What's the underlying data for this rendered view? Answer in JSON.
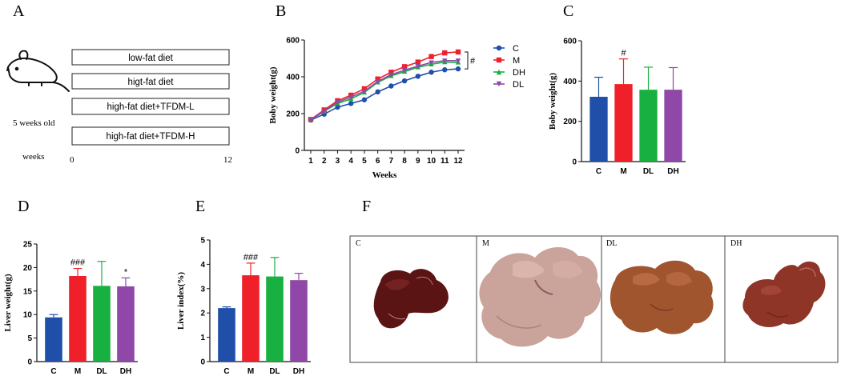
{
  "panel_letters": {
    "a": "A",
    "b": "B",
    "c": "C",
    "d": "D",
    "e": "E",
    "f": "F"
  },
  "panel_a": {
    "diets": [
      "low-fat diet",
      "higt-fat diet",
      "high-fat diet+TFDM-L",
      "high-fat diet+TFDM-H"
    ],
    "age_label": "5 weeks old",
    "weeks_label": "weeks",
    "start_week": "0",
    "end_week": "12"
  },
  "panel_f": {
    "labels": [
      "C",
      "M",
      "DL",
      "DH"
    ]
  },
  "colors": {
    "C": "#1f4fa8",
    "M": "#f0202a",
    "DH": "#18b040",
    "DL": "#8f48a8"
  },
  "chart_data": [
    {
      "id": "B",
      "type": "line",
      "xlabel": "Weeks",
      "ylabel": "Boby weight(g)",
      "x": [
        1,
        2,
        3,
        4,
        5,
        6,
        7,
        8,
        9,
        10,
        11,
        12
      ],
      "xticks": [
        "1",
        "2",
        "3",
        "4",
        "5",
        "6",
        "7",
        "8",
        "9",
        "10",
        "11",
        "12"
      ],
      "ylim": [
        0,
        600
      ],
      "yticks": [
        "0",
        "200",
        "400",
        "600"
      ],
      "series": [
        {
          "name": "C",
          "marker": "circle",
          "values": [
            165,
            197,
            235,
            255,
            275,
            318,
            350,
            378,
            403,
            425,
            438,
            443
          ]
        },
        {
          "name": "M",
          "marker": "square",
          "values": [
            168,
            220,
            270,
            300,
            335,
            388,
            425,
            455,
            480,
            510,
            530,
            535
          ]
        },
        {
          "name": "DH",
          "marker": "triangle-up",
          "values": [
            167,
            212,
            255,
            280,
            315,
            370,
            405,
            428,
            452,
            468,
            480,
            478
          ]
        },
        {
          "name": "DL",
          "marker": "triangle-down",
          "values": [
            166,
            215,
            262,
            290,
            322,
            375,
            412,
            436,
            458,
            478,
            488,
            488
          ]
        }
      ],
      "annotations": [
        "#"
      ]
    },
    {
      "id": "C",
      "type": "bar",
      "ylabel": "Boby weight(g)",
      "categories": [
        "C",
        "M",
        "DL",
        "DH"
      ],
      "values": [
        322,
        385,
        357,
        357
      ],
      "errors": [
        97,
        125,
        112,
        110
      ],
      "bar_colors": [
        "C",
        "M",
        "DH",
        "DL"
      ],
      "ylim": [
        0,
        600
      ],
      "yticks": [
        "0",
        "200",
        "400",
        "600"
      ],
      "annotations": [
        "",
        "#",
        "",
        ""
      ]
    },
    {
      "id": "D",
      "type": "bar",
      "ylabel": "Liver weight(g)",
      "categories": [
        "C",
        "M",
        "DL",
        "DH"
      ],
      "values": [
        9.4,
        18.2,
        16.1,
        16.0
      ],
      "errors": [
        0.6,
        1.6,
        5.2,
        1.8
      ],
      "bar_colors": [
        "C",
        "M",
        "DH",
        "DL"
      ],
      "ylim": [
        0,
        25
      ],
      "yticks": [
        "0",
        "5",
        "10",
        "15",
        "20",
        "25"
      ],
      "annotations": [
        "",
        "###",
        "",
        "*"
      ]
    },
    {
      "id": "E",
      "type": "bar",
      "ylabel": "Liver index(%)",
      "categories": [
        "C",
        "M",
        "DL",
        "DH"
      ],
      "values": [
        2.2,
        3.55,
        3.5,
        3.35
      ],
      "errors": [
        0.05,
        0.5,
        0.78,
        0.28
      ],
      "bar_colors": [
        "C",
        "M",
        "DH",
        "DL"
      ],
      "ylim": [
        0,
        5
      ],
      "yticks": [
        "0",
        "1",
        "2",
        "3",
        "4",
        "5"
      ],
      "annotations": [
        "",
        "###",
        "",
        ""
      ]
    }
  ]
}
